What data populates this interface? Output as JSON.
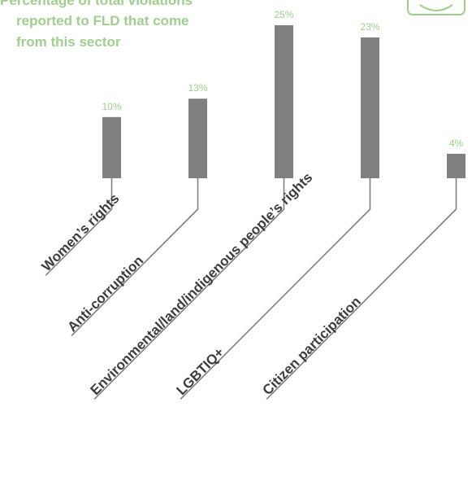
{
  "colors": {
    "bar": "#808080",
    "accent": "#9fcf8d",
    "text": "#3d3d3d",
    "leader": "#808080"
  },
  "title_lines": [
    "Percentage of total violations",
    "reported to FLD that come",
    "from this sector"
  ],
  "logo_icon": "badge-icon",
  "chart_data": {
    "type": "bar",
    "title": "Percentage of total violations reported to FLD that come from this sector",
    "categories": [
      "Women’s rights",
      "Anti-corruption",
      "Environmental/land/indigenous people’s rights",
      "LGBTIQ+",
      "Citizen participation"
    ],
    "values": [
      10,
      13,
      25,
      23,
      4
    ],
    "value_labels": [
      "10%",
      "13%",
      "25%",
      "23%",
      "4%"
    ],
    "ylim": [
      0,
      25
    ],
    "grid": false,
    "legend": "none"
  }
}
